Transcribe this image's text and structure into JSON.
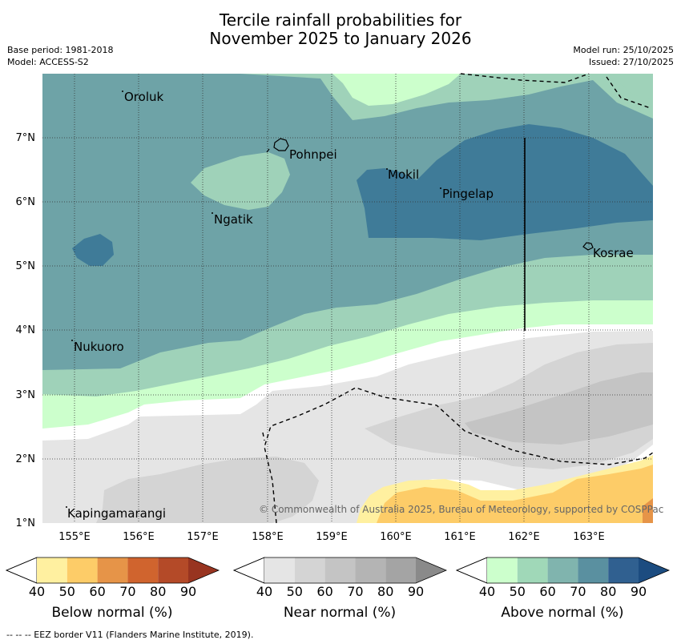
{
  "title_line1": "Tercile rainfall probabilities for",
  "title_line2": "November 2025 to January 2026",
  "meta": {
    "base_period": "Base period: 1981-2018",
    "model": "Model: ACCESS-S2",
    "model_run": "Model run: 25/10/2025",
    "issued": "Issued: 27/10/2025"
  },
  "lat_labels": [
    "1°N",
    "2°N",
    "3°N",
    "4°N",
    "5°N",
    "6°N",
    "7°N"
  ],
  "lon_labels": [
    "155°E",
    "156°E",
    "157°E",
    "158°E",
    "159°E",
    "160°E",
    "161°E",
    "162°E",
    "163°E"
  ],
  "places": [
    "Oroluk",
    "Pohnpei",
    "Mokil",
    "Pingelap",
    "Ngatik",
    "Kosrae",
    "Nukuoro",
    "Kapingamarangi"
  ],
  "copyright": "© Commonwealth of Australia 2025, Bureau of Meteorology, supported by COSPPac",
  "colorbars": [
    {
      "label": "Below normal (%)",
      "ticks": [
        "40",
        "50",
        "60",
        "70",
        "80",
        "90"
      ],
      "colors": [
        "#fff0a0",
        "#fdcc68",
        "#e69448",
        "#d0642e",
        "#b44a28",
        "#983420"
      ]
    },
    {
      "label": "Near normal (%)",
      "ticks": [
        "40",
        "50",
        "60",
        "70",
        "80",
        "90"
      ],
      "colors": [
        "#e5e5e5",
        "#d4d4d4",
        "#c4c4c4",
        "#b4b4b4",
        "#a4a4a4",
        "#8a8a8a"
      ]
    },
    {
      "label": "Above normal (%)",
      "ticks": [
        "40",
        "50",
        "60",
        "70",
        "80",
        "90"
      ],
      "colors": [
        "#ccffcc",
        "#a0d8b8",
        "#80b4ae",
        "#5a90a0",
        "#306090",
        "#1c4c80"
      ]
    }
  ],
  "footnote": "--  --  -- EEZ border V11 (Flanders Marine Institute, 2019)."
}
